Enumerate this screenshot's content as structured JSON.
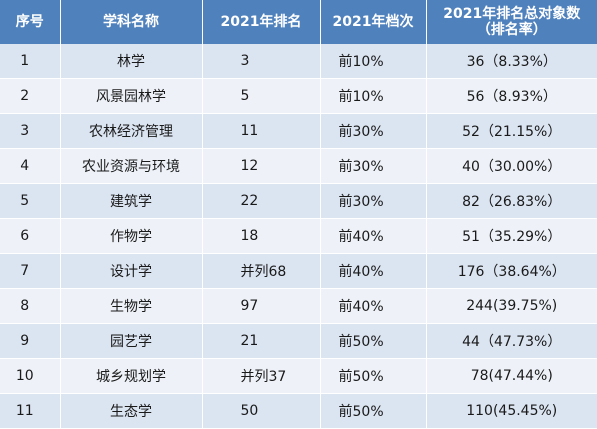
{
  "table": {
    "headers": [
      "序号",
      "学科名称",
      "2021年排名",
      "2021年档次",
      "2021年排名总对象数\n（排名率）"
    ],
    "header_line1": "2021年排名总对象数",
    "header_line2": "（排名率）",
    "rows": [
      [
        "1",
        "林学",
        "3",
        "前10%",
        "36（8.33%）"
      ],
      [
        "2",
        "风景园林学",
        "5",
        "前10%",
        "56（8.93%）"
      ],
      [
        "3",
        "农林经济管理",
        "11",
        "前30%",
        "52（21.15%）"
      ],
      [
        "4",
        "农业资源与环境",
        "12",
        "前30%",
        "40（30.00%）"
      ],
      [
        "5",
        "建筑学",
        "22",
        "前30%",
        "82（26.83%）"
      ],
      [
        "6",
        "作物学",
        "18",
        "前40%",
        "51（35.29%）"
      ],
      [
        "7",
        "设计学",
        "并列68",
        "前40%",
        "176（38.64%）"
      ],
      [
        "8",
        "生物学",
        "97",
        "前40%",
        "244(39.75%)"
      ],
      [
        "9",
        "园艺学",
        "21",
        "前50%",
        "44（47.73%）"
      ],
      [
        "10",
        "城乡规划学",
        "并列37",
        "前50%",
        "78(47.44%)"
      ],
      [
        "11",
        "生态学",
        "50",
        "前50%",
        "110(45.45%)"
      ]
    ]
  },
  "colors": {
    "header_bg": "#4f81bd",
    "row_odd_bg": "#dbe4f1",
    "row_even_bg": "#eef2f8"
  }
}
